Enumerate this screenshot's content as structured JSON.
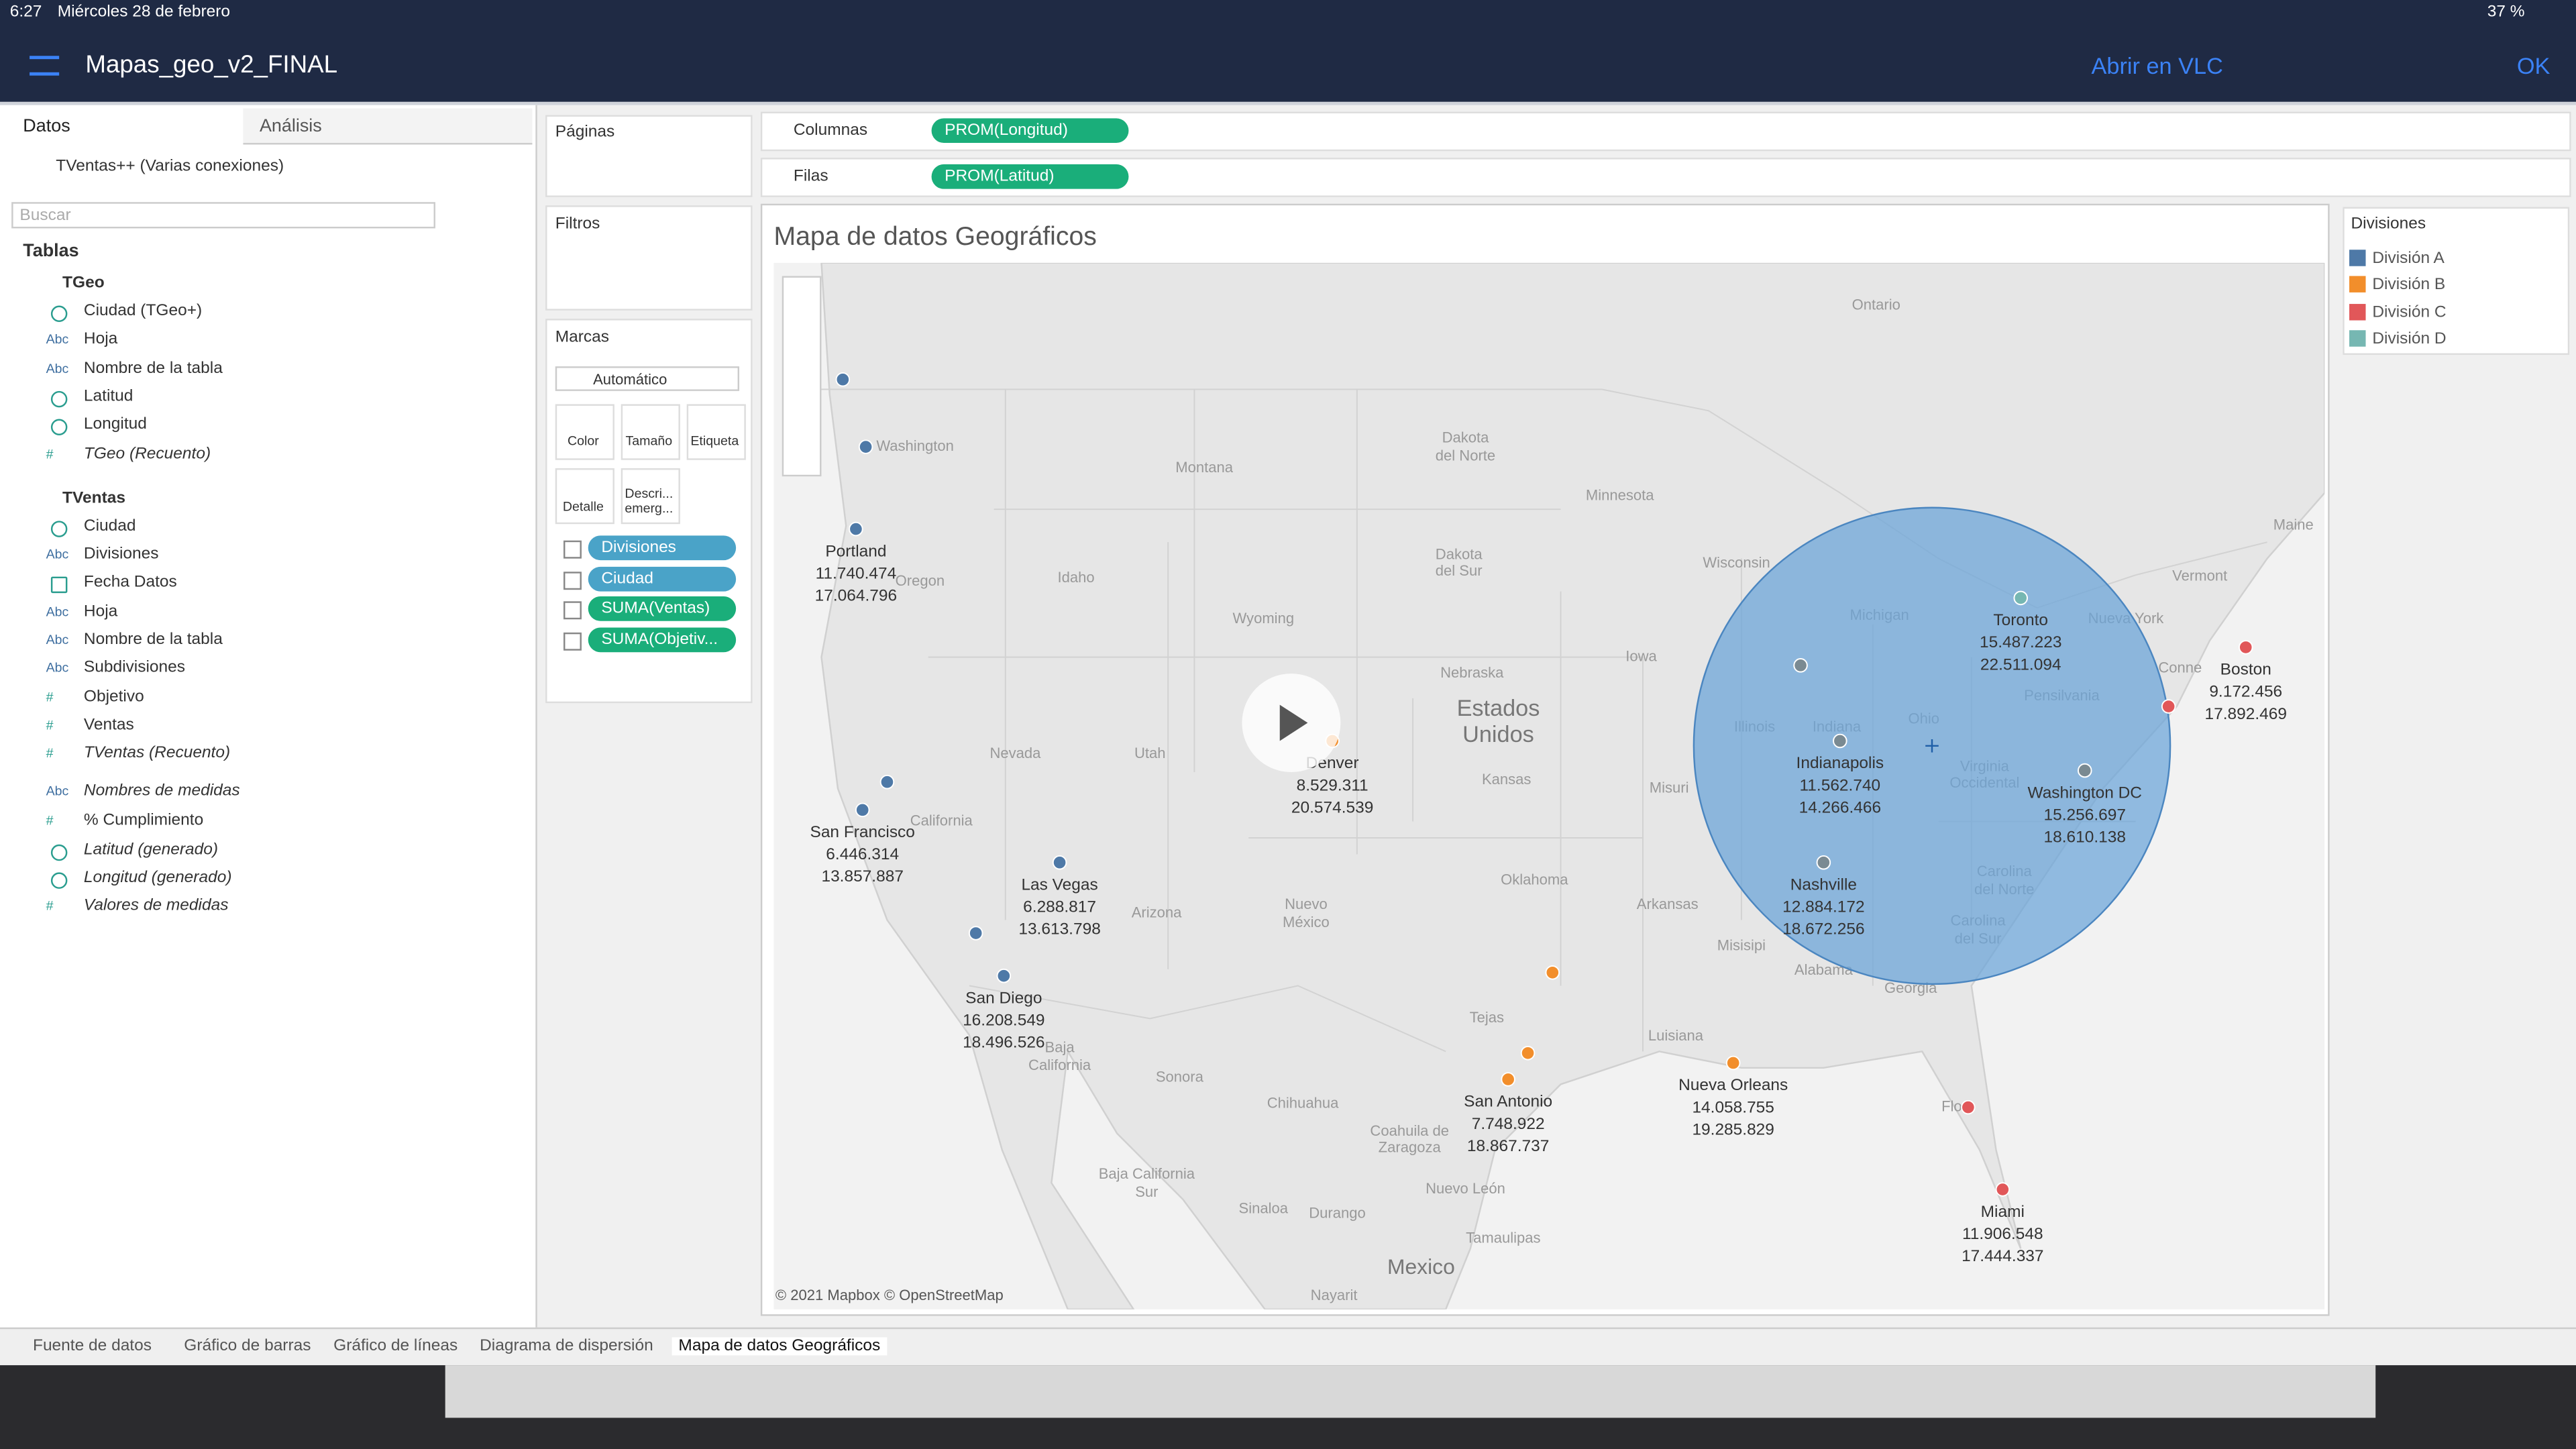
{
  "status": {
    "time": "6:27",
    "date": "Miércoles 28 de febrero",
    "battery": "37 %"
  },
  "toolbar": {
    "title": "Mapas_geo_v2_FINAL",
    "open": "Abrir en VLC",
    "ok": "OK"
  },
  "sidebar": {
    "tabs": [
      "Datos",
      "Análisis"
    ],
    "connection": "TVentas++ (Varias conexiones)",
    "search": "Buscar",
    "tables_heading": "Tablas",
    "tables": [
      {
        "name": "TGeo",
        "fields": [
          {
            "glyph": "globe",
            "label": "Ciudad (TGeo+)"
          },
          {
            "icon": "Abc",
            "label": "Hoja"
          },
          {
            "icon": "Abc",
            "label": "Nombre de la tabla"
          },
          {
            "glyph": "globe",
            "label": "Latitud"
          },
          {
            "glyph": "globe",
            "label": "Longitud"
          },
          {
            "icon": "#",
            "label": "TGeo (Recuento)",
            "italic": true
          }
        ]
      },
      {
        "name": "TVentas",
        "fields": [
          {
            "glyph": "globe",
            "label": "Ciudad"
          },
          {
            "icon": "Abc",
            "label": "Divisiones"
          },
          {
            "glyph": "calendar",
            "label": "Fecha Datos"
          },
          {
            "icon": "Abc",
            "label": "Hoja"
          },
          {
            "icon": "Abc",
            "label": "Nombre de la tabla"
          },
          {
            "icon": "Abc",
            "label": "Subdivisiones"
          },
          {
            "icon": "#",
            "label": "Objetivo"
          },
          {
            "icon": "#",
            "label": "Ventas"
          },
          {
            "icon": "#",
            "label": "TVentas (Recuento)",
            "italic": true
          }
        ]
      }
    ],
    "measures": [
      {
        "icon": "Abc",
        "label": "Nombres de medidas",
        "italic": true
      },
      {
        "icon": "#",
        "label": "% Cumplimiento"
      },
      {
        "glyph": "globe",
        "label": "Latitud (generado)",
        "italic": true
      },
      {
        "glyph": "globe",
        "label": "Longitud (generado)",
        "italic": true
      },
      {
        "icon": "#",
        "label": "Valores de medidas",
        "italic": true
      }
    ]
  },
  "shelves": {
    "pages": "Páginas",
    "filters": "Filtros",
    "marks": "Marcas",
    "mark_type": "Automático",
    "mark_buttons": [
      "Color",
      "Tamaño",
      "Etiqueta",
      "Detalle",
      "Descri...",
      "emerg..."
    ],
    "mark_pills": [
      "Divisiones",
      "Ciudad",
      "SUMA(Ventas)",
      "SUMA(Objetiv..."
    ],
    "columns": "Columnas",
    "columns_pill": "PROM(Longitud)",
    "rows": "Filas",
    "rows_pill": "PROM(Latitud)"
  },
  "view": {
    "title": "Mapa de datos Geográficos",
    "attribution": "© 2021 Mapbox © OpenStreetMap",
    "places": [
      "Ontario",
      "Dakota",
      "del Norte",
      "Montana",
      "Minnesota",
      "Washington",
      "Dakota",
      "del Sur",
      "Wisconsin",
      "Maine",
      "Oregon",
      "Idaho",
      "Michigan",
      "Wyoming",
      "Nueva York",
      "Vermont",
      "Iowa",
      "Nebraska",
      "Illinois",
      "Indiana",
      "Ohio",
      "Pensilvania",
      "Conne",
      "Estados",
      "Unidos",
      "Nevada",
      "Utah",
      "Kansas",
      "Virginia",
      "Occidental",
      "Misuri",
      "California",
      "Arizona",
      "Oklahoma",
      "Arkansas",
      "Carolina",
      "del Norte",
      "Carolina",
      "del Sur",
      "Nuevo",
      "México",
      "Misisipi",
      "Alabama",
      "Georgia",
      "Tejas",
      "Luisiana",
      "Baja",
      "California",
      "Sonora",
      "Chihuahua",
      "Flo",
      "Coahuila de",
      "Zaragoza",
      "Baja California",
      "Sur",
      "Nuevo León",
      "Sinaloa",
      "Durango",
      "Tamaulipas",
      "Mexico",
      "Nayarit"
    ],
    "cities": [
      {
        "name": "Portland",
        "ventas": "11.740.474",
        "objetivo": "17.064.796",
        "color": "#4e79a7"
      },
      {
        "name": "San Francisco",
        "ventas": "6.446.314",
        "objetivo": "13.857.887",
        "color": "#4e79a7"
      },
      {
        "name": "Las Vegas",
        "ventas": "6.288.817",
        "objetivo": "13.613.798",
        "color": "#4e79a7"
      },
      {
        "name": "San Diego",
        "ventas": "16.208.549",
        "objetivo": "18.496.526",
        "color": "#4e79a7"
      },
      {
        "name": "Denver",
        "ventas": "8.529.311",
        "objetivo": "20.574.539",
        "color": "#f28e2b"
      },
      {
        "name": "San Antonio",
        "ventas": "7.748.922",
        "objetivo": "18.867.737",
        "color": "#f28e2b"
      },
      {
        "name": "Nueva Orleans",
        "ventas": "14.058.755",
        "objetivo": "19.285.829",
        "color": "#f28e2b"
      },
      {
        "name": "Miami",
        "ventas": "11.906.548",
        "objetivo": "17.444.337",
        "color": "#e15759"
      },
      {
        "name": "Indianapolis",
        "ventas": "11.562.740",
        "objetivo": "14.266.466",
        "color": "#7a8a92"
      },
      {
        "name": "Nashville",
        "ventas": "12.884.172",
        "objetivo": "18.672.256",
        "color": "#7a8a92"
      },
      {
        "name": "Toronto",
        "ventas": "15.487.223",
        "objetivo": "22.511.094",
        "color": "#76b7b2"
      },
      {
        "name": "Washington DC",
        "ventas": "15.256.697",
        "objetivo": "18.610.138",
        "color": "#7a8a92"
      },
      {
        "name": "Boston",
        "ventas": "9.172.456",
        "objetivo": "17.892.469",
        "color": "#e15759"
      }
    ]
  },
  "legend": {
    "title": "Divisiones",
    "items": [
      {
        "name": "División A",
        "color": "#4e79a7"
      },
      {
        "name": "División B",
        "color": "#f28e2b"
      },
      {
        "name": "División C",
        "color": "#e15759"
      },
      {
        "name": "División D",
        "color": "#76b7b2"
      }
    ]
  },
  "tabs": [
    "Fuente de datos",
    "Gráfico de barras",
    "Gráfico de líneas",
    "Diagrama de dispersión",
    "Mapa de datos Geográficos"
  ]
}
